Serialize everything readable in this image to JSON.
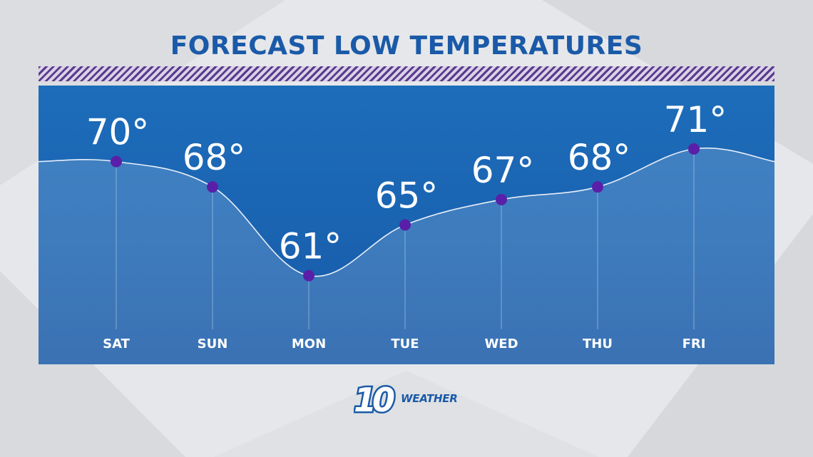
{
  "title": "FORECAST LOW TEMPERATURES",
  "logo": {
    "mark": "10",
    "word": "WEATHER"
  },
  "colors": {
    "title": "#1a5aa8",
    "panel": "#1a63b1",
    "point": "#5a1fa8",
    "line": "#e8eef8",
    "hatch": "#5b3a8e"
  },
  "chart_data": {
    "type": "line",
    "title": "FORECAST LOW TEMPERATURES",
    "categories": [
      "SAT",
      "SUN",
      "MON",
      "TUE",
      "WED",
      "THU",
      "FRI"
    ],
    "values": [
      70,
      68,
      61,
      65,
      67,
      68,
      71
    ],
    "value_labels": [
      "70°",
      "68°",
      "61°",
      "65°",
      "67°",
      "68°",
      "71°"
    ],
    "unit": "°",
    "ylim": [
      54,
      76
    ],
    "grid": false,
    "area_fill": true
  }
}
